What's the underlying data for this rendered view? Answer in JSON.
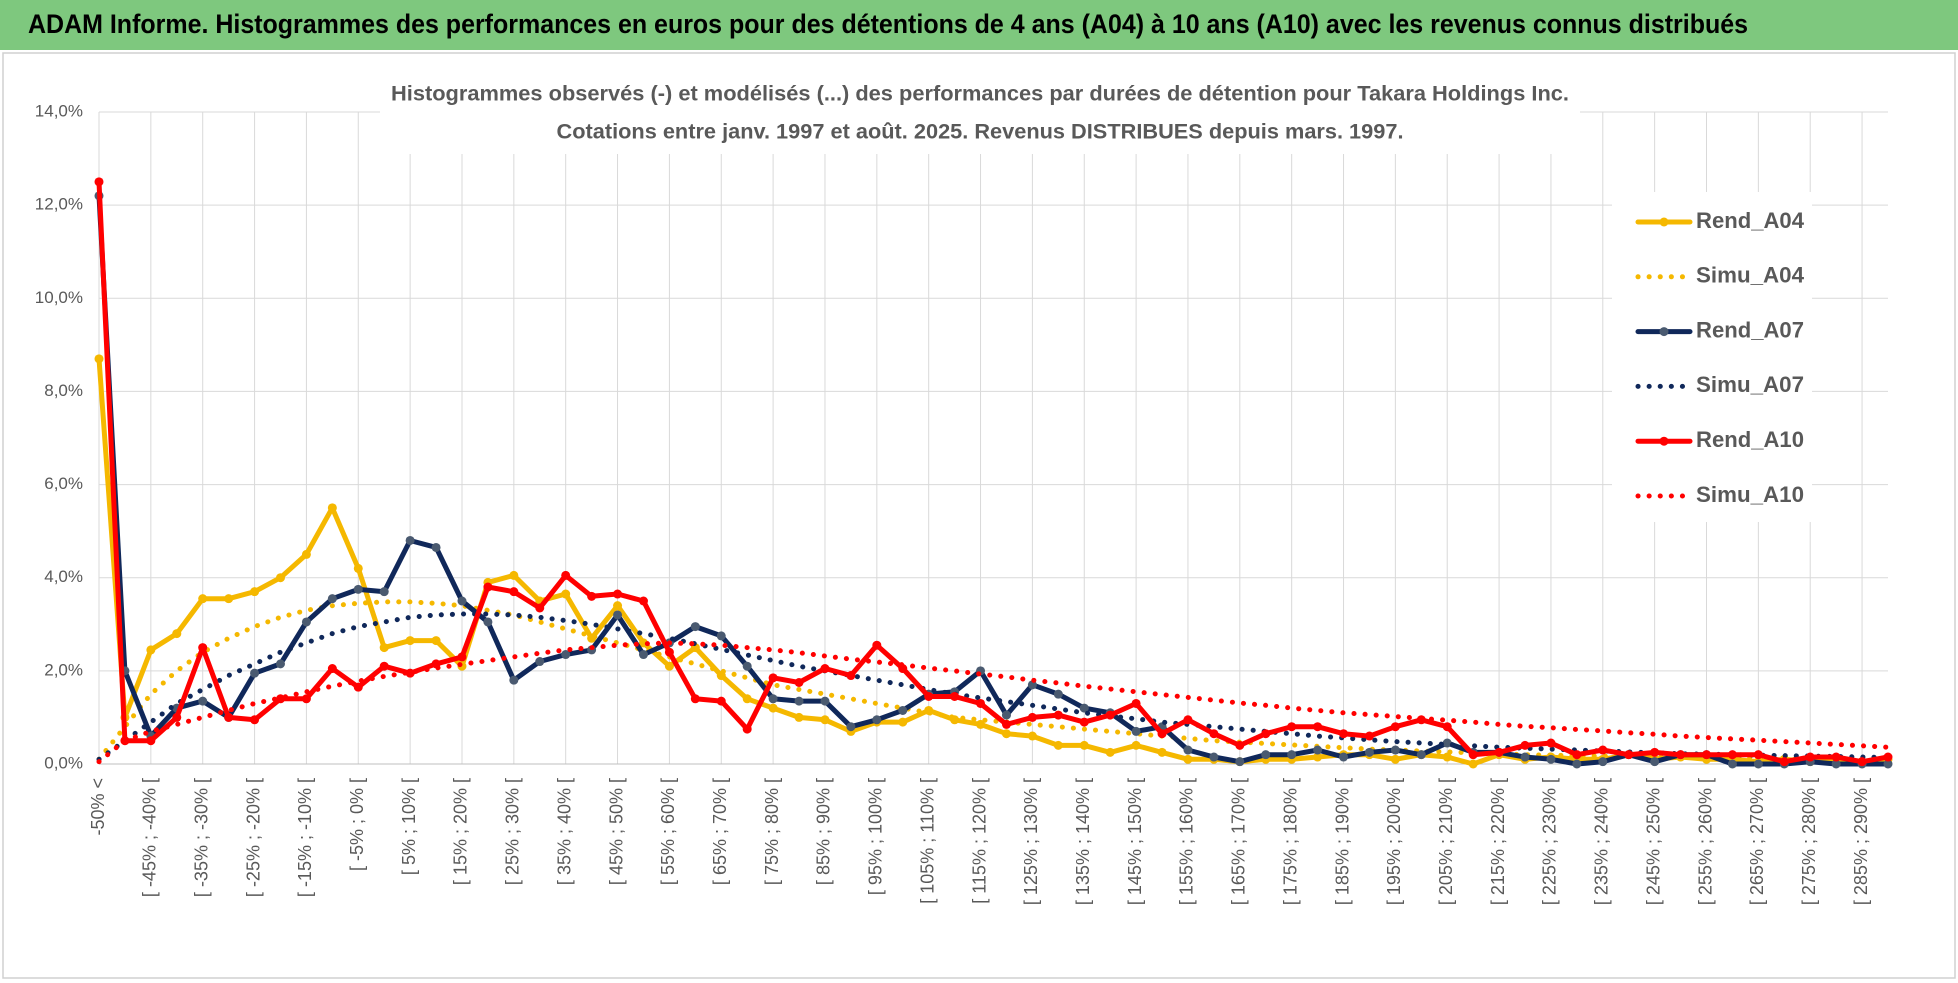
{
  "header": {
    "title": "ADAM Informe. Histogrammes des performances en euros pour des détentions de 4 ans (A04) à 10 ans (A10) avec les revenus connus distribués"
  },
  "chart_data": {
    "type": "line",
    "title": "Histogrammes observés (-) et modélisés (...) des performances par durées de détention pour Takara Holdings Inc.",
    "subtitle": "Cotations entre janv. 1997 et août. 2025. Revenus DISTRIBUES depuis mars. 1997.",
    "categories": [
      "-50% <",
      null,
      "[ -45% ; -40% [",
      null,
      "[ -35% ; -30% [",
      null,
      "[ -25% ; -20% [",
      null,
      "[ -15% ; -10% [",
      null,
      "[ -5% ; 0% [",
      null,
      "[ 5% ; 10% [",
      null,
      "[ 15% ; 20% [",
      null,
      "[ 25% ; 30% [",
      null,
      "[ 35% ; 40% [",
      null,
      "[ 45% ; 50% [",
      null,
      "[ 55% ; 60% [",
      null,
      "[ 65% ; 70% [",
      null,
      "[ 75% ; 80% [",
      null,
      "[ 85% ; 90% [",
      null,
      "[ 95% ; 100% [",
      null,
      "[ 105% ; 110% [",
      null,
      "[ 115% ; 120% [",
      null,
      "[ 125% ; 130% [",
      null,
      "[ 135% ; 140% [",
      null,
      "[ 145% ; 150% [",
      null,
      "[ 155% ; 160% [",
      null,
      "[ 165% ; 170% [",
      null,
      "[ 175% ; 180% [",
      null,
      "[ 185% ; 190% [",
      null,
      "[ 195% ; 200% [",
      null,
      "[ 205% ; 210% [",
      null,
      "[ 215% ; 220% [",
      null,
      "[ 225% ; 230% [",
      null,
      "[ 235% ; 240% [",
      null,
      "[ 245% ; 250% [",
      null,
      "[ 255% ; 260% [",
      null,
      "[ 265% ; 270% [",
      null,
      "[ 275% ; 280% [",
      null,
      "[ 285% ; 290% [",
      null
    ],
    "series": [
      {
        "name": "Rend_A04",
        "color": "#f5b800",
        "style": "solid",
        "markers": true,
        "values": [
          8.7,
          1.0,
          2.45,
          2.8,
          3.55,
          3.55,
          3.7,
          4.0,
          4.5,
          5.5,
          4.2,
          2.5,
          2.65,
          2.65,
          2.1,
          3.9,
          4.05,
          3.5,
          3.65,
          2.7,
          3.4,
          2.6,
          2.1,
          2.5,
          1.9,
          1.4,
          1.2,
          1.0,
          0.95,
          0.7,
          0.9,
          0.9,
          1.15,
          0.95,
          0.85,
          0.65,
          0.6,
          0.4,
          0.4,
          0.25,
          0.4,
          0.25,
          0.1,
          0.1,
          0.05,
          0.1,
          0.1,
          0.15,
          0.2,
          0.2,
          0.1,
          0.2,
          0.15,
          0,
          0.2,
          0.1,
          0.15,
          0.1,
          0.1,
          0.2,
          0.1,
          0.15,
          0.1,
          0.1,
          0.05,
          0.1,
          0.05,
          0.05,
          0.05,
          0.1
        ]
      },
      {
        "name": "Simu_A04",
        "color": "#f5b800",
        "style": "dotted",
        "markers": false,
        "values": [
          0.1,
          0.8,
          1.5,
          2.0,
          2.4,
          2.7,
          2.95,
          3.15,
          3.3,
          3.4,
          3.45,
          3.48,
          3.48,
          3.45,
          3.4,
          3.3,
          3.2,
          3.05,
          2.9,
          2.75,
          2.6,
          2.45,
          2.3,
          2.15,
          2.0,
          1.85,
          1.7,
          1.6,
          1.5,
          1.4,
          1.3,
          1.2,
          1.1,
          1.0,
          0.95,
          0.9,
          0.85,
          0.8,
          0.75,
          0.7,
          0.65,
          0.6,
          0.55,
          0.5,
          0.47,
          0.44,
          0.41,
          0.38,
          0.35,
          0.32,
          0.3,
          0.28,
          0.26,
          0.24,
          0.22,
          0.2,
          0.19,
          0.18,
          0.17,
          0.16,
          0.15,
          0.14,
          0.13,
          0.12,
          0.11,
          0.1,
          0.09,
          0.08,
          0.08,
          0.07
        ]
      },
      {
        "name": "Rend_A07",
        "color": "#10285a",
        "marker_color": "#4a5a70",
        "style": "solid",
        "markers": true,
        "values": [
          12.2,
          2.0,
          0.6,
          1.2,
          1.35,
          1.0,
          1.95,
          2.15,
          3.05,
          3.55,
          3.75,
          3.7,
          4.8,
          4.65,
          3.5,
          3.05,
          1.8,
          2.2,
          2.35,
          2.45,
          3.2,
          2.35,
          2.6,
          2.95,
          2.75,
          2.1,
          1.4,
          1.35,
          1.35,
          0.8,
          0.95,
          1.15,
          1.5,
          1.55,
          2.0,
          1.05,
          1.7,
          1.5,
          1.2,
          1.1,
          0.7,
          0.8,
          0.3,
          0.15,
          0.05,
          0.2,
          0.2,
          0.3,
          0.15,
          0.25,
          0.3,
          0.2,
          0.45,
          0.25,
          0.25,
          0.15,
          0.1,
          0,
          0.05,
          0.2,
          0.05,
          0.2,
          0.2,
          0,
          0,
          0,
          0.05,
          0,
          0,
          0
        ]
      },
      {
        "name": "Simu_A07",
        "color": "#10285a",
        "style": "dotted",
        "markers": false,
        "values": [
          0.1,
          0.5,
          0.9,
          1.3,
          1.6,
          1.9,
          2.15,
          2.4,
          2.6,
          2.8,
          2.95,
          3.05,
          3.15,
          3.2,
          3.22,
          3.22,
          3.2,
          3.15,
          3.08,
          3.0,
          2.9,
          2.8,
          2.7,
          2.58,
          2.46,
          2.34,
          2.22,
          2.1,
          2.0,
          1.9,
          1.8,
          1.7,
          1.6,
          1.5,
          1.42,
          1.34,
          1.26,
          1.18,
          1.1,
          1.03,
          0.97,
          0.9,
          0.85,
          0.8,
          0.75,
          0.7,
          0.65,
          0.6,
          0.56,
          0.52,
          0.48,
          0.45,
          0.42,
          0.39,
          0.36,
          0.34,
          0.32,
          0.3,
          0.28,
          0.26,
          0.24,
          0.22,
          0.21,
          0.2,
          0.19,
          0.18,
          0.17,
          0.16,
          0.15,
          0.14
        ]
      },
      {
        "name": "Rend_A10",
        "color": "#ff0000",
        "style": "solid",
        "markers": true,
        "values": [
          12.5,
          0.5,
          0.5,
          1.0,
          2.5,
          1.0,
          0.95,
          1.4,
          1.4,
          2.05,
          1.65,
          2.1,
          1.95,
          2.15,
          2.3,
          3.8,
          3.7,
          3.35,
          4.05,
          3.6,
          3.65,
          3.5,
          2.4,
          1.4,
          1.35,
          0.75,
          1.85,
          1.75,
          2.05,
          1.9,
          2.55,
          2.05,
          1.45,
          1.45,
          1.3,
          0.85,
          1.0,
          1.05,
          0.9,
          1.05,
          1.3,
          0.65,
          0.95,
          0.65,
          0.4,
          0.65,
          0.8,
          0.8,
          0.65,
          0.6,
          0.8,
          0.95,
          0.8,
          0.2,
          0.25,
          0.4,
          0.45,
          0.2,
          0.3,
          0.2,
          0.25,
          0.2,
          0.2,
          0.2,
          0.2,
          0.05,
          0.15,
          0.15,
          0.05,
          0.15
        ]
      },
      {
        "name": "Simu_A10",
        "color": "#ff0000",
        "style": "dotted",
        "markers": false,
        "values": [
          0.05,
          0.5,
          0.7,
          0.85,
          1.0,
          1.15,
          1.3,
          1.42,
          1.55,
          1.67,
          1.78,
          1.88,
          1.97,
          2.06,
          2.14,
          2.22,
          2.3,
          2.38,
          2.45,
          2.5,
          2.55,
          2.58,
          2.6,
          2.58,
          2.55,
          2.5,
          2.45,
          2.39,
          2.32,
          2.25,
          2.19,
          2.13,
          2.06,
          2.0,
          1.93,
          1.87,
          1.8,
          1.74,
          1.67,
          1.61,
          1.55,
          1.49,
          1.43,
          1.37,
          1.31,
          1.26,
          1.2,
          1.15,
          1.1,
          1.06,
          1.02,
          0.98,
          0.94,
          0.9,
          0.85,
          0.81,
          0.78,
          0.74,
          0.71,
          0.67,
          0.64,
          0.6,
          0.57,
          0.54,
          0.51,
          0.48,
          0.45,
          0.42,
          0.39,
          0.36
        ]
      }
    ],
    "ylim": [
      0,
      14
    ],
    "yticks": [
      {
        "value": 0,
        "label": "0,0%"
      },
      {
        "value": 2,
        "label": "2,0%"
      },
      {
        "value": 4,
        "label": "4,0%"
      },
      {
        "value": 6,
        "label": "6,0%"
      },
      {
        "value": 8,
        "label": "8,0%"
      },
      {
        "value": 10,
        "label": "10,0%"
      },
      {
        "value": 12,
        "label": "12,0%"
      },
      {
        "value": 14,
        "label": "14,0%"
      }
    ],
    "grid": true,
    "legend": "right"
  }
}
